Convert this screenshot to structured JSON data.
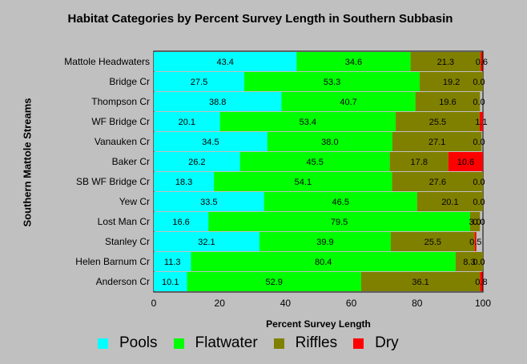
{
  "chart_data": {
    "type": "bar",
    "orientation": "horizontal",
    "stacked": true,
    "title": "Habitat Categories by Percent Survey Length in Southern Subbasin",
    "xlabel": "Percent Survey Length",
    "ylabel": "Southern Mattole Streams",
    "xlim": [
      0,
      100
    ],
    "xticks": [
      "0",
      "20",
      "40",
      "60",
      "80",
      "100"
    ],
    "grid": false,
    "legend_position": "bottom",
    "categories": [
      "Mattole Headwaters",
      "Bridge Cr",
      "Thompson Cr",
      "WF Bridge Cr",
      "Vanauken Cr",
      "Baker Cr",
      "SB WF Bridge Cr",
      "Yew Cr",
      "Lost Man Cr",
      "Stanley Cr",
      "Helen Barnum Cr",
      "Anderson Cr"
    ],
    "series": [
      {
        "name": "Pools",
        "color": "#00ffff",
        "values": [
          43.4,
          27.5,
          38.8,
          20.1,
          34.5,
          26.2,
          18.3,
          33.5,
          16.6,
          32.1,
          11.3,
          10.1
        ],
        "labels": [
          "43.4",
          "27.5",
          "38.8",
          "20.1",
          "34.5",
          "26.2",
          "18.3",
          "33.5",
          "16.6",
          "32.1",
          "11.3",
          "10.1"
        ]
      },
      {
        "name": "Flatwater",
        "color": "#00ff00",
        "values": [
          34.6,
          53.3,
          40.7,
          53.4,
          38.0,
          45.5,
          54.1,
          46.5,
          79.5,
          39.9,
          80.4,
          52.9
        ],
        "labels": [
          "34.6",
          "53.3",
          "40.7",
          "53.4",
          "38.0",
          "45.5",
          "54.1",
          "46.5",
          "79.5",
          "39.9",
          "80.4",
          "52.9"
        ]
      },
      {
        "name": "Riffles",
        "color": "#808000",
        "values": [
          21.3,
          19.2,
          19.6,
          25.5,
          27.1,
          17.8,
          27.6,
          20.1,
          3.0,
          25.5,
          8.3,
          36.1
        ],
        "labels": [
          "21.3",
          "19.2",
          "19.6",
          "25.5",
          "27.1",
          "17.8",
          "27.6",
          "20.1",
          "3.0",
          "25.5",
          "8.3",
          "36.1"
        ]
      },
      {
        "name": "Dry",
        "color": "#ff0000",
        "values": [
          0.6,
          0.0,
          0.0,
          1.1,
          0.0,
          10.6,
          0.0,
          0.0,
          0.0,
          0.5,
          0.0,
          0.8
        ],
        "labels": [
          "0.6",
          "0.0",
          "0.0",
          "1.1",
          "0.0",
          "10.6",
          "0.0",
          "0.0",
          "0.0",
          "0.5",
          "0.0",
          "0.8"
        ]
      }
    ]
  }
}
